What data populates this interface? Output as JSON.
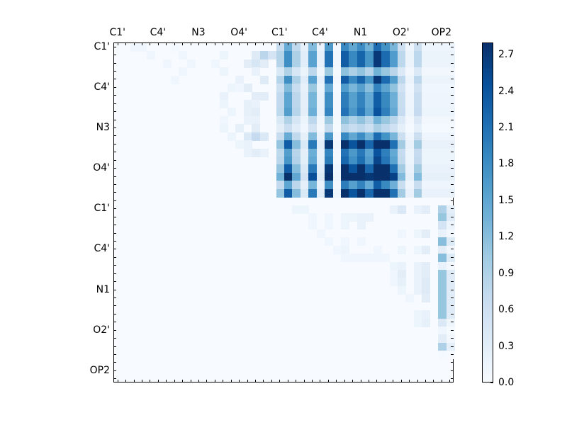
{
  "chart_data": {
    "type": "heatmap",
    "title": "",
    "xlabel": "",
    "ylabel": "",
    "n": 42,
    "tick_labels": [
      "C1'",
      "C4'",
      "N3",
      "O4'",
      "C1'",
      "C4'",
      "N1",
      "O2'",
      "OP2"
    ],
    "tick_positions": [
      0,
      5,
      10,
      15,
      20,
      25,
      30,
      35,
      40
    ],
    "x_axis_position": "top",
    "colormap": "Blues",
    "colorbar": {
      "min": 0.0,
      "max": 2.8,
      "ticks": [
        "0.0",
        "0.3",
        "0.6",
        "0.9",
        "1.2",
        "1.5",
        "1.8",
        "2.1",
        "2.4",
        "2.7"
      ]
    },
    "block_upper_right": {
      "rows": [
        0,
        19
      ],
      "cols": [
        20,
        41
      ],
      "row_factors": [
        0.8,
        1.0,
        1.0,
        0.5,
        1.0,
        0.7,
        0.85,
        0.85,
        0.9,
        0.5,
        0.35,
        0.8,
        1.3,
        0.9,
        0.95,
        1.3,
        1.6,
        0.85,
        1.3,
        0.0
      ],
      "col_factors": [
        0.55,
        1.15,
        0.6,
        0.2,
        1.0,
        0.15,
        1.35,
        0.05,
        1.5,
        1.2,
        1.45,
        1.1,
        1.75,
        1.4,
        1.05,
        0.5,
        0.1,
        0.5,
        0.1,
        0.1,
        0.1,
        0.1
      ]
    },
    "block_right_column": {
      "col": 40,
      "rows": [
        20,
        21,
        22,
        23,
        24,
        25,
        26,
        27,
        28,
        29,
        30,
        31,
        32,
        33,
        34,
        35,
        36,
        37,
        38
      ],
      "values": [
        0.9,
        1.1,
        0.5,
        0.2,
        1.2,
        0.3,
        1.2,
        0.2,
        1.1,
        1.1,
        1.1,
        1.1,
        1.1,
        1.1,
        0.4,
        0.1,
        0.3,
        0.9,
        0.05
      ]
    },
    "sparse_light_cells": [
      [
        0,
        2,
        0.1
      ],
      [
        0,
        3,
        0.1
      ],
      [
        0,
        7,
        0.05
      ],
      [
        1,
        4,
        0.1
      ],
      [
        1,
        8,
        0.1
      ],
      [
        1,
        13,
        0.15
      ],
      [
        1,
        17,
        0.35
      ],
      [
        1,
        18,
        0.8
      ],
      [
        1,
        19,
        0.5
      ],
      [
        2,
        6,
        0.1
      ],
      [
        2,
        9,
        0.1
      ],
      [
        2,
        12,
        0.1
      ],
      [
        2,
        16,
        0.3
      ],
      [
        2,
        17,
        0.45
      ],
      [
        2,
        18,
        0.3
      ],
      [
        3,
        8,
        0.1
      ],
      [
        3,
        13,
        0.15
      ],
      [
        3,
        17,
        0.2
      ],
      [
        4,
        7,
        0.1
      ],
      [
        4,
        15,
        0.2
      ],
      [
        4,
        18,
        0.35
      ],
      [
        5,
        14,
        0.15
      ],
      [
        5,
        15,
        0.1
      ],
      [
        5,
        16,
        0.3
      ],
      [
        6,
        13,
        0.2
      ],
      [
        6,
        17,
        0.3
      ],
      [
        6,
        18,
        0.3
      ],
      [
        7,
        13,
        0.15
      ],
      [
        7,
        16,
        0.25
      ],
      [
        7,
        17,
        0.2
      ],
      [
        8,
        14,
        0.15
      ],
      [
        8,
        16,
        0.25
      ],
      [
        8,
        17,
        0.3
      ],
      [
        9,
        13,
        0.1
      ],
      [
        9,
        16,
        0.2
      ],
      [
        9,
        17,
        0.2
      ],
      [
        10,
        13,
        0.15
      ],
      [
        10,
        15,
        0.25
      ],
      [
        10,
        17,
        0.3
      ],
      [
        11,
        14,
        0.15
      ],
      [
        11,
        16,
        0.4
      ],
      [
        11,
        17,
        0.7
      ],
      [
        11,
        18,
        0.4
      ],
      [
        12,
        15,
        0.15
      ],
      [
        12,
        16,
        0.2
      ],
      [
        13,
        16,
        0.2
      ],
      [
        13,
        17,
        0.3
      ],
      [
        13,
        18,
        0.2
      ],
      [
        20,
        22,
        0.15
      ],
      [
        20,
        23,
        0.15
      ],
      [
        20,
        34,
        0.2
      ],
      [
        20,
        35,
        0.4
      ],
      [
        20,
        37,
        0.2
      ],
      [
        20,
        38,
        0.3
      ],
      [
        21,
        24,
        0.1
      ],
      [
        21,
        26,
        0.1
      ],
      [
        21,
        28,
        0.15
      ],
      [
        21,
        29,
        0.15
      ],
      [
        21,
        30,
        0.2
      ],
      [
        21,
        31,
        0.2
      ],
      [
        22,
        24,
        0.1
      ],
      [
        22,
        26,
        0.1
      ],
      [
        22,
        28,
        0.15
      ],
      [
        22,
        30,
        0.2
      ],
      [
        23,
        25,
        0.1
      ],
      [
        23,
        35,
        0.1
      ],
      [
        23,
        37,
        0.15
      ],
      [
        23,
        38,
        0.3
      ],
      [
        24,
        26,
        0.1
      ],
      [
        24,
        28,
        0.1
      ],
      [
        24,
        30,
        0.1
      ],
      [
        25,
        27,
        0.1
      ],
      [
        25,
        28,
        0.15
      ],
      [
        25,
        32,
        0.1
      ],
      [
        25,
        35,
        0.15
      ],
      [
        25,
        37,
        0.15
      ],
      [
        25,
        38,
        0.3
      ],
      [
        26,
        28,
        0.1
      ],
      [
        26,
        29,
        0.1
      ],
      [
        26,
        30,
        0.1
      ],
      [
        26,
        31,
        0.1
      ],
      [
        26,
        32,
        0.1
      ],
      [
        26,
        33,
        0.1
      ],
      [
        27,
        34,
        0.15
      ],
      [
        27,
        35,
        0.2
      ],
      [
        27,
        37,
        0.2
      ],
      [
        27,
        38,
        0.3
      ],
      [
        28,
        34,
        0.1
      ],
      [
        28,
        35,
        0.3
      ],
      [
        28,
        37,
        0.2
      ],
      [
        28,
        38,
        0.3
      ],
      [
        29,
        34,
        0.1
      ],
      [
        29,
        35,
        0.25
      ],
      [
        29,
        37,
        0.2
      ],
      [
        29,
        38,
        0.35
      ],
      [
        30,
        35,
        0.15
      ],
      [
        30,
        37,
        0.2
      ],
      [
        30,
        38,
        0.35
      ],
      [
        31,
        36,
        0.1
      ],
      [
        31,
        38,
        0.3
      ],
      [
        33,
        37,
        0.15
      ],
      [
        33,
        38,
        0.2
      ],
      [
        34,
        37,
        0.15
      ],
      [
        34,
        38,
        0.25
      ]
    ]
  }
}
